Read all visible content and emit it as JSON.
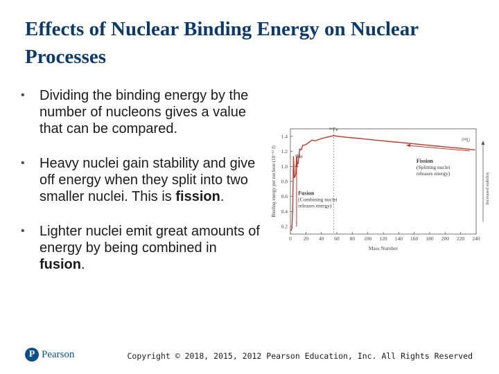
{
  "slide": {
    "title": "Effects of Nuclear Binding Energy on Nuclear Processes"
  },
  "bullets": [
    {
      "pre": "Dividing the binding energy by the number of nucleons gives a value that can be compared.",
      "bold": "",
      "post": ""
    },
    {
      "pre": "Heavy nuclei gain stability and give off energy when they split into two smaller nuclei. This is ",
      "bold": "fission",
      "post": "."
    },
    {
      "pre": "Lighter nuclei emit great amounts of energy by being combined in ",
      "bold": "fusion",
      "post": "."
    }
  ],
  "footer": {
    "logo_mark": "P",
    "logo_text": "Pearson",
    "copyright": "Copyright © 2018, 2015, 2012 Pearson Education, Inc. All Rights Reserved"
  },
  "chart_data": {
    "type": "line",
    "xlabel": "Mass Number",
    "ylabel": "Binding energy per nucleon (10⁻¹² J)",
    "xlim": [
      0,
      240
    ],
    "ylim": [
      0.1,
      1.5
    ],
    "xticks": [
      0,
      20,
      40,
      60,
      80,
      100,
      120,
      140,
      160,
      180,
      200,
      220,
      240
    ],
    "yticks": [
      0.2,
      0.4,
      0.6,
      0.8,
      1.0,
      1.2,
      1.4
    ],
    "ytick_labels": [
      "0.2",
      "0.4",
      "0.6",
      "0.8",
      "1.0",
      "1.2",
      "1.4"
    ],
    "grid": false,
    "color": "#c0392b",
    "series": [
      {
        "x": [
          1,
          2,
          3,
          4,
          5,
          6,
          7,
          8,
          9,
          10,
          12,
          14,
          16,
          20,
          24,
          28,
          32,
          40,
          48,
          56,
          62,
          70,
          80,
          90,
          100,
          110,
          120,
          130,
          140,
          150,
          160,
          170,
          180,
          190,
          200,
          210,
          220,
          230,
          238
        ],
        "y": [
          0.15,
          0.18,
          0.45,
          1.13,
          0.85,
          0.87,
          0.9,
          1.13,
          1.03,
          1.04,
          1.23,
          1.22,
          1.28,
          1.29,
          1.32,
          1.35,
          1.34,
          1.37,
          1.39,
          1.41,
          1.4,
          1.39,
          1.38,
          1.37,
          1.36,
          1.35,
          1.34,
          1.33,
          1.32,
          1.31,
          1.3,
          1.29,
          1.28,
          1.27,
          1.26,
          1.25,
          1.24,
          1.23,
          1.22
        ]
      }
    ],
    "annotations": {
      "fe": "⁵⁶Fe",
      "he": "⁴He",
      "u": "²³⁸U",
      "fission_title": "Fission",
      "fission_sub1": "(Splitting nuclei",
      "fission_sub2": "releases energy)",
      "fusion_title": "Fusion",
      "fusion_sub1": "(Combining nuclei",
      "fusion_sub2": "releases energy)",
      "stability": "Increased stability",
      "fe_mass": 56
    }
  }
}
